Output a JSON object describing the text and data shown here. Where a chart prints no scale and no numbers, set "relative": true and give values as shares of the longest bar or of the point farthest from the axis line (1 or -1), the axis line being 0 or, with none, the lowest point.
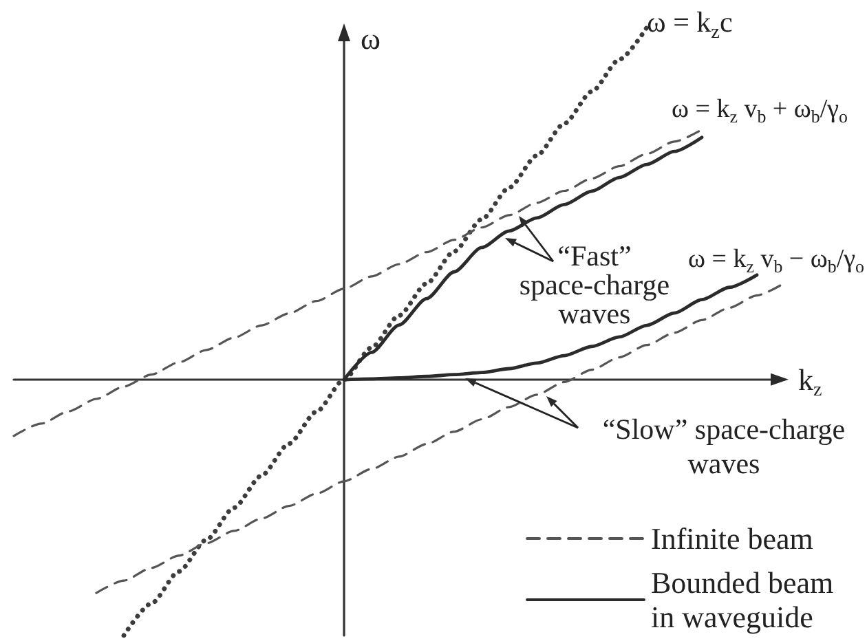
{
  "chart_data": {
    "type": "line",
    "relative": true,
    "xlabel": "k$_{z}$",
    "ylabel": "ω",
    "legend": "bottom right",
    "marker": "none",
    "line_style": "solid",
    "categories": [
      null,
      null,
      null,
      null,
      null,
      null,
      null,
      null,
      null,
      null,
      null,
      null,
      null,
      null,
      null,
      null,
      null,
      null,
      null,
      null,
      null,
      null,
      null,
      null,
      null,
      null,
      null,
      null,
      null
    ],
    "series": [
      {
        "color": "#3c3c3c",
        "line_style": "dotted",
        "values": [
          null,
          null,
          null,
          null,
          -0.727,
          -0.636,
          -0.545,
          -0.455,
          -0.364,
          -0.273,
          -0.182,
          -0.091,
          0,
          0.091,
          0.182,
          0.273,
          0.364,
          0.455,
          0.545,
          0.636,
          0.727,
          0.818,
          0.909,
          1,
          null,
          null,
          null,
          null,
          null
        ]
      },
      {
        "name": "Infinite beam",
        "color": "#555555",
        "line_style": "dashed",
        "values": [
          -0.16,
          -0.125,
          -0.09,
          -0.055,
          -0.02,
          0.014,
          0.049,
          0.084,
          0.119,
          0.154,
          0.188,
          0.223,
          0.258,
          0.293,
          0.328,
          0.362,
          0.397,
          0.432,
          0.467,
          0.502,
          0.536,
          0.571,
          0.606,
          0.641,
          0.676,
          0.71,
          null,
          null,
          null
        ]
      },
      {
        "color": "#555555",
        "line_style": "dashed",
        "values": [
          null,
          null,
          null,
          -0.606,
          -0.571,
          -0.535,
          -0.5,
          -0.465,
          -0.43,
          -0.395,
          -0.359,
          -0.324,
          -0.289,
          -0.254,
          -0.219,
          -0.183,
          -0.148,
          -0.113,
          -0.078,
          -0.043,
          -0.007,
          0.028,
          0.063,
          0.098,
          0.133,
          0.169,
          0.204,
          0.239,
          0.274
        ]
      },
      {
        "name": "Bounded beam in waveguide",
        "color": "#2b2b2b",
        "values": [
          null,
          null,
          null,
          null,
          null,
          null,
          null,
          null,
          null,
          null,
          null,
          null,
          0,
          0.077,
          0.155,
          0.23,
          0.306,
          0.375,
          0.422,
          0.459,
          0.497,
          0.535,
          0.574,
          0.611,
          0.648,
          0.688,
          null,
          null,
          null
        ]
      },
      {
        "color": "#2b2b2b",
        "values": [
          null,
          null,
          null,
          null,
          null,
          null,
          null,
          null,
          null,
          null,
          null,
          null,
          0,
          0.002,
          0.005,
          0.009,
          0.014,
          0.02,
          0.031,
          0.047,
          0.068,
          0.094,
          0.121,
          0.154,
          0.189,
          0.227,
          0.262,
          0.297,
          null
        ]
      }
    ],
    "annotations": [
      "ω = k$_{z}$c",
      "ω = k$_{z}$ v$_{b}$ + ω$_{b}$/γ$_{o}$",
      "ω = k$_{z}$ v$_{b}$ − ω$_{b}$/γ$_{o}$",
      "“Fast” space-charge waves",
      "“Slow” space-charge waves"
    ]
  }
}
